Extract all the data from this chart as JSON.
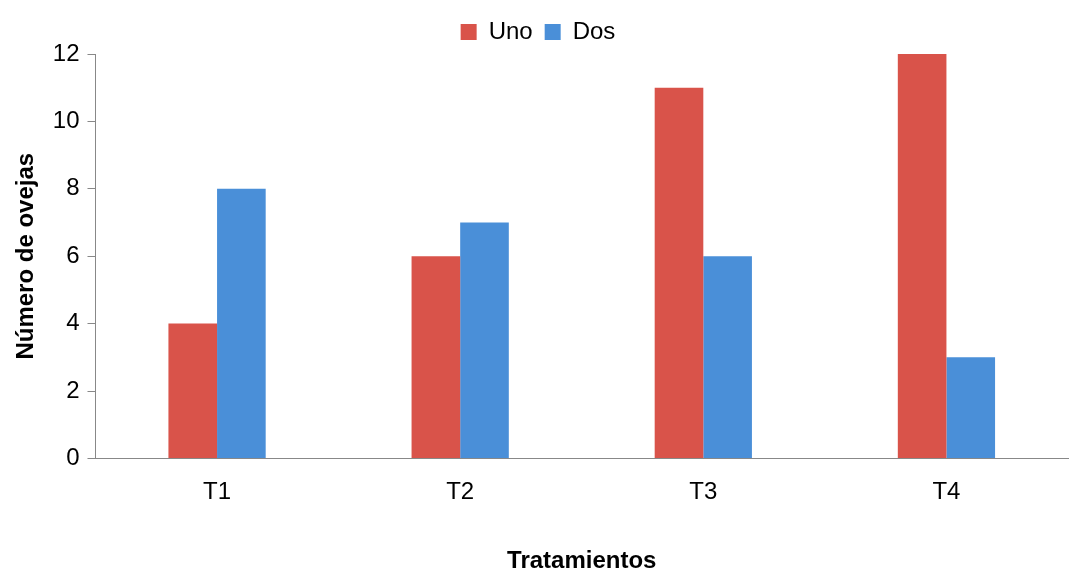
{
  "chart_data": {
    "type": "bar",
    "xlabel": "Tratamientos",
    "ylabel": "Número de ovejas",
    "categories": [
      "T1",
      "T2",
      "T3",
      "T4"
    ],
    "series": [
      {
        "name": "Uno",
        "color": "#d9534a",
        "values": [
          4,
          6,
          11,
          12
        ]
      },
      {
        "name": "Dos",
        "color": "#4a8fd8",
        "values": [
          8,
          7,
          6,
          3
        ]
      }
    ],
    "ylim": [
      0,
      12
    ],
    "yticks": [
      0,
      2,
      4,
      6,
      8,
      10,
      12
    ],
    "legend": "top"
  }
}
